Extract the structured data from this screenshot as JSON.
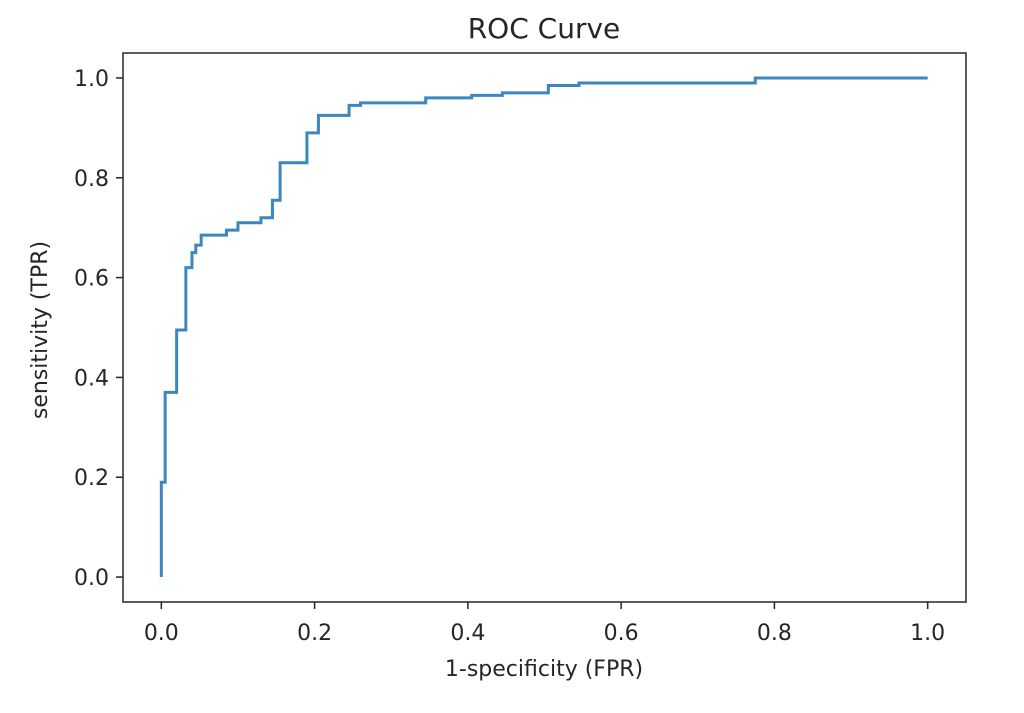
{
  "chart_data": {
    "type": "line",
    "title": "ROC Curve",
    "xlabel": "1-specificity (FPR)",
    "ylabel": "sensitivity (TPR)",
    "xlim": [
      -0.05,
      1.05
    ],
    "ylim": [
      -0.05,
      1.05
    ],
    "xticks": [
      0.0,
      0.2,
      0.4,
      0.6,
      0.8,
      1.0
    ],
    "xtick_labels": [
      "0.0",
      "0.2",
      "0.4",
      "0.6",
      "0.8",
      "1.0"
    ],
    "yticks": [
      0.0,
      0.2,
      0.4,
      0.6,
      0.8,
      1.0
    ],
    "ytick_labels": [
      "0.0",
      "0.2",
      "0.4",
      "0.6",
      "0.8",
      "1.0"
    ],
    "grid": false,
    "series": [
      {
        "name": "ROC",
        "color": "#3c87c0",
        "step": true,
        "x": [
          0.0,
          0.0,
          0.005,
          0.005,
          0.02,
          0.02,
          0.032,
          0.032,
          0.04,
          0.04,
          0.045,
          0.045,
          0.052,
          0.052,
          0.085,
          0.085,
          0.1,
          0.1,
          0.13,
          0.13,
          0.145,
          0.145,
          0.155,
          0.155,
          0.19,
          0.19,
          0.205,
          0.205,
          0.245,
          0.245,
          0.26,
          0.26,
          0.345,
          0.345,
          0.405,
          0.405,
          0.445,
          0.445,
          0.505,
          0.505,
          0.545,
          0.545,
          0.775,
          0.775,
          1.0
        ],
        "y": [
          0.0,
          0.19,
          0.19,
          0.37,
          0.37,
          0.495,
          0.495,
          0.62,
          0.62,
          0.65,
          0.65,
          0.665,
          0.665,
          0.685,
          0.685,
          0.695,
          0.695,
          0.71,
          0.71,
          0.72,
          0.72,
          0.755,
          0.755,
          0.83,
          0.83,
          0.89,
          0.89,
          0.925,
          0.925,
          0.945,
          0.945,
          0.95,
          0.95,
          0.96,
          0.96,
          0.965,
          0.965,
          0.97,
          0.97,
          0.985,
          0.985,
          0.99,
          0.99,
          1.0,
          1.0
        ]
      }
    ]
  }
}
